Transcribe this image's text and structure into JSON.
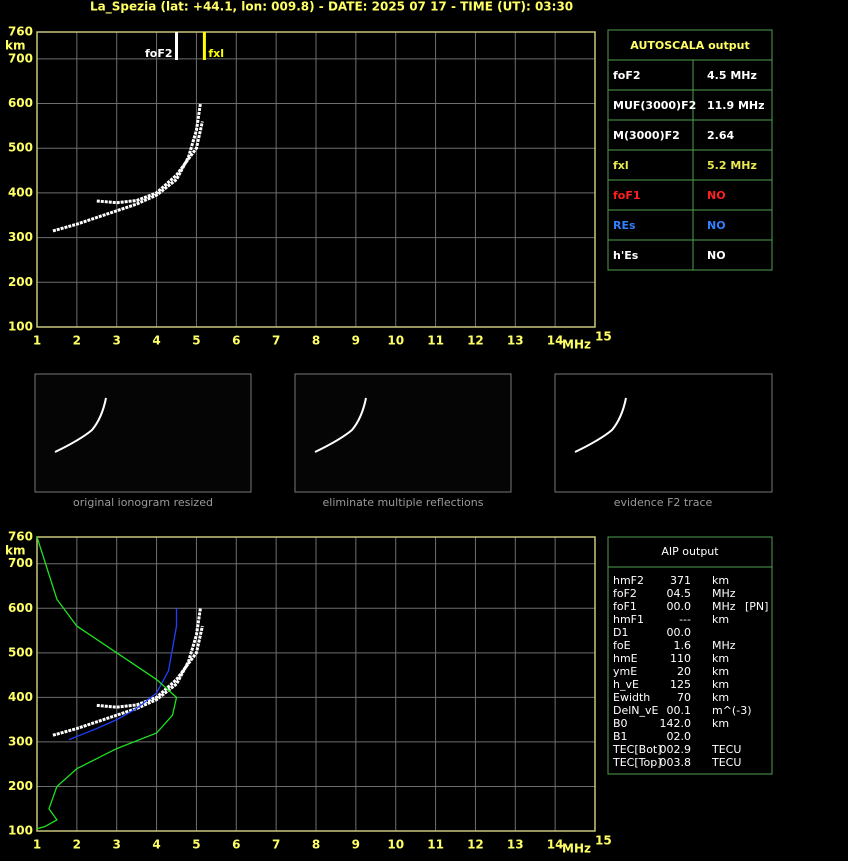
{
  "title": "La_Spezia (lat: +44.1, lon: 009.8) - DATE: 2025 07 17 - TIME (UT): 03:30",
  "chart_data": [
    {
      "type": "line",
      "x_label": "MHz",
      "y_label": "km",
      "xlim": [
        1,
        15
      ],
      "ylim": [
        100,
        760
      ],
      "xticks": [
        1,
        2,
        3,
        4,
        5,
        6,
        7,
        8,
        9,
        10,
        11,
        12,
        13,
        14,
        15
      ],
      "yticks": [
        100,
        200,
        300,
        400,
        500,
        600,
        700,
        760
      ],
      "grid": true,
      "series": [
        {
          "color": "#ffffff",
          "x": [
            1.4,
            2,
            2.5,
            3,
            3.5,
            4,
            4.5,
            4.8,
            5,
            5.1
          ],
          "values": [
            315,
            330,
            345,
            360,
            375,
            395,
            430,
            480,
            540,
            600
          ]
        },
        {
          "color": "#ffffff",
          "x": [
            2.5,
            3,
            3.5,
            4,
            4.5,
            5,
            5.15
          ],
          "values": [
            382,
            378,
            383,
            400,
            440,
            500,
            560
          ]
        }
      ],
      "annotations": [
        {
          "text": "foF2",
          "x": 4.5,
          "color": "#ffffff"
        },
        {
          "text": "fxl",
          "x": 5.2,
          "color": "#ffff00"
        }
      ]
    },
    {
      "type": "line",
      "x_label": "MHz",
      "y_label": "km",
      "xlim": [
        1,
        15
      ],
      "ylim": [
        100,
        760
      ],
      "xticks": [
        1,
        2,
        3,
        4,
        5,
        6,
        7,
        8,
        9,
        10,
        11,
        12,
        13,
        14,
        15
      ],
      "yticks": [
        100,
        200,
        300,
        400,
        500,
        600,
        700,
        760
      ],
      "grid": true,
      "series": [
        {
          "color": "#ffffff",
          "x": [
            1.4,
            2,
            2.5,
            3,
            3.5,
            4,
            4.5,
            4.8,
            5,
            5.1
          ],
          "values": [
            315,
            330,
            345,
            360,
            375,
            395,
            430,
            480,
            540,
            600
          ]
        },
        {
          "color": "#ffffff",
          "x": [
            2.5,
            3,
            3.5,
            4,
            4.5,
            5,
            5.15
          ],
          "values": [
            382,
            378,
            383,
            400,
            440,
            500,
            560
          ]
        },
        {
          "color": "#2040ff",
          "x": [
            1.8,
            2.5,
            3,
            3.5,
            4,
            4.3,
            4.5,
            4.5
          ],
          "values": [
            305,
            330,
            350,
            375,
            410,
            460,
            560,
            600
          ]
        },
        {
          "color": "#20e020",
          "x": [
            1,
            1.5,
            2,
            3,
            4,
            4.5,
            4.4,
            4,
            3,
            2,
            1.5,
            1.3,
            1.5,
            1.2,
            1
          ],
          "values": [
            760,
            620,
            560,
            500,
            440,
            400,
            360,
            320,
            285,
            240,
            200,
            150,
            125,
            110,
            105
          ]
        }
      ],
      "annotations": []
    }
  ],
  "autoscala": {
    "header": "AUTOSCALA output",
    "rows": [
      {
        "name": "foF2",
        "value": "4.5 MHz",
        "color": "#ffffff"
      },
      {
        "name": "MUF(3000)F2",
        "value": "11.9 MHz",
        "color": "#ffffff"
      },
      {
        "name": "M(3000)F2",
        "value": "2.64",
        "color": "#ffffff"
      },
      {
        "name": "fxl",
        "value": "5.2 MHz",
        "color": "#e8e850"
      },
      {
        "name": "foF1",
        "value": "NO",
        "color": "#ff2020"
      },
      {
        "name": "REs",
        "value": "NO",
        "color": "#3080ff"
      },
      {
        "name": "h'Es",
        "value": "NO",
        "color": "#ffffff"
      }
    ]
  },
  "thumbnails": [
    "original ionogram resized",
    "eliminate multiple reflections",
    "evidence F2 trace"
  ],
  "aip": {
    "header": "AIP output",
    "rows": [
      [
        "hmF2",
        "371",
        "km"
      ],
      [
        "foF2",
        "04.5",
        "MHz"
      ],
      [
        "foF1",
        "00.0",
        "MHz",
        "[PN]"
      ],
      [
        "hmF1",
        "---",
        "km"
      ],
      [
        "D1",
        "00.0"
      ],
      [
        "foE",
        "1.6",
        "MHz"
      ],
      [
        "hmE",
        "110",
        "km"
      ],
      [
        "ymE",
        "20",
        "km"
      ],
      [
        "h_vE",
        "125",
        "km"
      ],
      [
        "Ewidth",
        "70",
        "km"
      ],
      [
        "DelN_vE",
        "00.1",
        "m^(-3)"
      ],
      [
        "B0",
        "142.0",
        "km"
      ],
      [
        "B1",
        "02.0"
      ],
      [
        "TEC[Bot]",
        "002.9",
        "TECU"
      ],
      [
        "TEC[Top]",
        "003.8",
        "TECU"
      ]
    ]
  }
}
